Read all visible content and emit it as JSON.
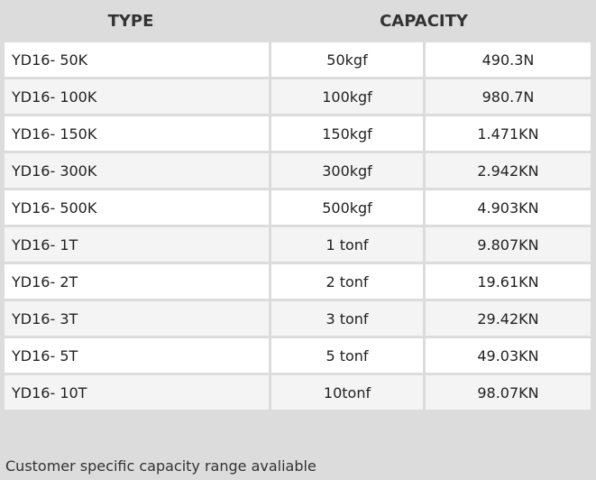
{
  "header": {
    "type": "TYPE",
    "capacity": "CAPACITY"
  },
  "table": {
    "rows": [
      [
        "YD16- 50K",
        "50kgf",
        "490.3N"
      ],
      [
        "YD16- 100K",
        "100kgf",
        "980.7N"
      ],
      [
        "YD16- 150K",
        "150kgf",
        "1.471KN"
      ],
      [
        "YD16- 300K",
        "300kgf",
        "2.942KN"
      ],
      [
        "YD16- 500K",
        "500kgf",
        "4.903KN"
      ],
      [
        "YD16- 1T",
        "1 tonf",
        "9.807KN"
      ],
      [
        "YD16- 2T",
        "2 tonf",
        "19.61KN"
      ],
      [
        "YD16- 3T",
        "3 tonf",
        "29.42KN"
      ],
      [
        "YD16- 5T",
        "5 tonf",
        "49.03KN"
      ],
      [
        "YD16- 10T",
        "10tonf",
        "98.07KN"
      ]
    ]
  },
  "footer": "Customer specific capacity range avaliable"
}
